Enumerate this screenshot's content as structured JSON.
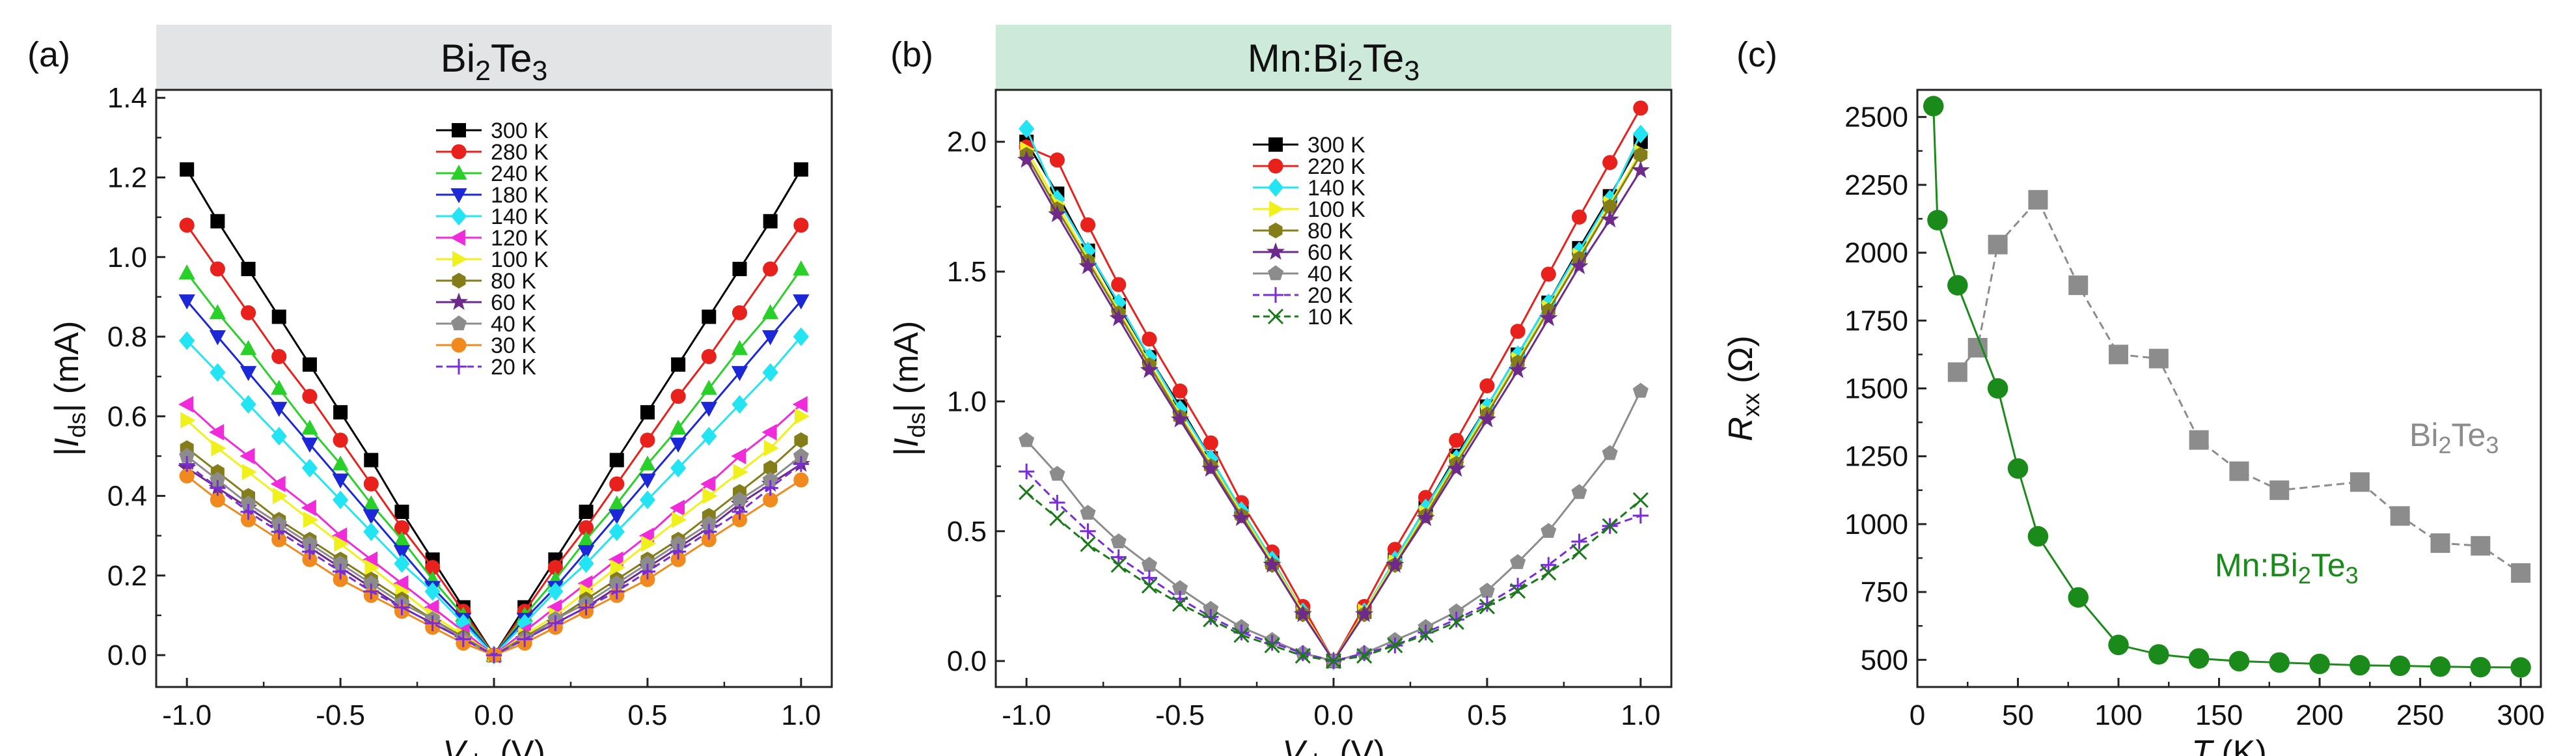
{
  "chart_data": [
    {
      "panel_label": "(a)",
      "type": "line",
      "title": "Bi₂Te₃",
      "title_parts": [
        {
          "t": "Bi"
        },
        {
          "t": "2",
          "sub": true
        },
        {
          "t": "Te"
        },
        {
          "t": "3",
          "sub": true
        }
      ],
      "header_color": "#e3e4e6",
      "xlabel": "V_ds (V)",
      "xlabel_parts": [
        {
          "t": "V",
          "i": true
        },
        {
          "t": "ds",
          "sub": true
        },
        {
          "t": " (V)"
        }
      ],
      "ylabel": "|I_ds| (mA)",
      "ylabel_parts": [
        {
          "t": "|"
        },
        {
          "t": "I",
          "i": true
        },
        {
          "t": "ds",
          "sub": true
        },
        {
          "t": "| (mA)"
        }
      ],
      "xlim": [
        -1.1,
        1.1
      ],
      "ylim": [
        -0.08,
        1.42
      ],
      "xticks": [
        -1.0,
        -0.5,
        0.0,
        0.5,
        1.0
      ],
      "xtick_labels": [
        "-1.0",
        "-0.5",
        "0.0",
        "0.5",
        "1.0"
      ],
      "yticks": [
        0.0,
        0.2,
        0.4,
        0.6,
        0.8,
        1.0,
        1.2,
        1.4
      ],
      "ytick_labels": [
        "0.0",
        "0.2",
        "0.4",
        "0.6",
        "0.8",
        "1.0",
        "1.2",
        "1.4"
      ],
      "x": [
        -1.0,
        -0.9,
        -0.8,
        -0.7,
        -0.6,
        -0.5,
        -0.4,
        -0.3,
        -0.2,
        -0.1,
        0.0,
        0.1,
        0.2,
        0.3,
        0.4,
        0.5,
        0.6,
        0.7,
        0.8,
        0.9,
        1.0
      ],
      "legend_position": "top-center",
      "series": [
        {
          "name": "300 K",
          "color": "#000000",
          "marker": "square",
          "values": [
            1.22,
            1.09,
            0.97,
            0.85,
            0.73,
            0.61,
            0.49,
            0.36,
            0.24,
            0.12,
            0.0,
            0.12,
            0.24,
            0.36,
            0.49,
            0.61,
            0.73,
            0.85,
            0.97,
            1.09,
            1.22
          ]
        },
        {
          "name": "280 K",
          "color": "#e8211c",
          "marker": "circle",
          "values": [
            1.08,
            0.97,
            0.86,
            0.75,
            0.65,
            0.54,
            0.43,
            0.32,
            0.22,
            0.11,
            0.0,
            0.11,
            0.22,
            0.32,
            0.43,
            0.54,
            0.65,
            0.75,
            0.86,
            0.97,
            1.08
          ]
        },
        {
          "name": "240 K",
          "color": "#2ad02a",
          "marker": "triangle-up",
          "values": [
            0.96,
            0.86,
            0.77,
            0.67,
            0.57,
            0.48,
            0.38,
            0.29,
            0.19,
            0.1,
            0.0,
            0.1,
            0.19,
            0.29,
            0.38,
            0.48,
            0.57,
            0.67,
            0.77,
            0.86,
            0.97
          ]
        },
        {
          "name": "180 K",
          "color": "#1c28d8",
          "marker": "triangle-down",
          "values": [
            0.89,
            0.8,
            0.71,
            0.62,
            0.53,
            0.44,
            0.35,
            0.26,
            0.17,
            0.09,
            0.0,
            0.09,
            0.17,
            0.26,
            0.35,
            0.44,
            0.53,
            0.62,
            0.71,
            0.8,
            0.89
          ]
        },
        {
          "name": "140 K",
          "color": "#22e4f2",
          "marker": "diamond",
          "values": [
            0.79,
            0.71,
            0.63,
            0.55,
            0.47,
            0.39,
            0.31,
            0.23,
            0.16,
            0.08,
            0.0,
            0.08,
            0.16,
            0.23,
            0.31,
            0.39,
            0.47,
            0.55,
            0.63,
            0.71,
            0.8
          ]
        },
        {
          "name": "120 K",
          "color": "#f02cda",
          "marker": "triangle-left",
          "values": [
            0.63,
            0.56,
            0.5,
            0.43,
            0.37,
            0.3,
            0.24,
            0.18,
            0.12,
            0.06,
            0.0,
            0.06,
            0.12,
            0.18,
            0.24,
            0.3,
            0.37,
            0.43,
            0.5,
            0.56,
            0.63
          ]
        },
        {
          "name": "100 K",
          "color": "#f0f01c",
          "marker": "triangle-right",
          "values": [
            0.59,
            0.52,
            0.46,
            0.4,
            0.34,
            0.28,
            0.22,
            0.16,
            0.1,
            0.05,
            0.0,
            0.05,
            0.1,
            0.16,
            0.22,
            0.28,
            0.34,
            0.4,
            0.46,
            0.52,
            0.6
          ]
        },
        {
          "name": "80 K",
          "color": "#847e1a",
          "marker": "hexagon",
          "values": [
            0.52,
            0.46,
            0.4,
            0.34,
            0.29,
            0.24,
            0.19,
            0.14,
            0.09,
            0.045,
            0.0,
            0.045,
            0.09,
            0.14,
            0.19,
            0.24,
            0.29,
            0.35,
            0.41,
            0.47,
            0.54
          ]
        },
        {
          "name": "60 K",
          "color": "#6e2a8a",
          "marker": "star",
          "values": [
            0.47,
            0.42,
            0.37,
            0.32,
            0.27,
            0.22,
            0.17,
            0.12,
            0.08,
            0.04,
            0.0,
            0.04,
            0.08,
            0.12,
            0.17,
            0.22,
            0.27,
            0.32,
            0.38,
            0.43,
            0.48
          ]
        },
        {
          "name": "40 K",
          "color": "#8c8c8c",
          "marker": "pentagon",
          "values": [
            0.5,
            0.44,
            0.38,
            0.33,
            0.28,
            0.23,
            0.18,
            0.13,
            0.09,
            0.04,
            0.0,
            0.04,
            0.09,
            0.13,
            0.18,
            0.23,
            0.28,
            0.33,
            0.39,
            0.44,
            0.5
          ]
        },
        {
          "name": "30 K",
          "color": "#f08a1e",
          "marker": "circle",
          "values": [
            0.45,
            0.39,
            0.34,
            0.29,
            0.24,
            0.19,
            0.15,
            0.11,
            0.07,
            0.03,
            0.0,
            0.03,
            0.07,
            0.11,
            0.15,
            0.19,
            0.24,
            0.29,
            0.34,
            0.39,
            0.44
          ]
        },
        {
          "name": "20 K",
          "color": "#7a2cd8",
          "marker": "plus",
          "dashed": true,
          "values": [
            0.48,
            0.42,
            0.36,
            0.31,
            0.26,
            0.21,
            0.16,
            0.12,
            0.08,
            0.04,
            0.0,
            0.04,
            0.08,
            0.12,
            0.16,
            0.21,
            0.26,
            0.31,
            0.36,
            0.42,
            0.48
          ]
        }
      ]
    },
    {
      "panel_label": "(b)",
      "type": "line",
      "title": "Mn:Bi₂Te₃",
      "title_parts": [
        {
          "t": "Mn:Bi"
        },
        {
          "t": "2",
          "sub": true
        },
        {
          "t": "Te"
        },
        {
          "t": "3",
          "sub": true
        }
      ],
      "header_color": "#cde9d9",
      "xlabel": "V_ds (V)",
      "xlabel_parts": [
        {
          "t": "V",
          "i": true
        },
        {
          "t": "ds",
          "sub": true
        },
        {
          "t": " (V)"
        }
      ],
      "ylabel": "|I_ds| (mA)",
      "ylabel_parts": [
        {
          "t": "|"
        },
        {
          "t": "I",
          "i": true
        },
        {
          "t": "ds",
          "sub": true
        },
        {
          "t": "| (mA)"
        }
      ],
      "xlim": [
        -1.1,
        1.1
      ],
      "ylim": [
        -0.1,
        2.2
      ],
      "xticks": [
        -1.0,
        -0.5,
        0.0,
        0.5,
        1.0
      ],
      "xtick_labels": [
        "-1.0",
        "-0.5",
        "0.0",
        "0.5",
        "1.0"
      ],
      "yticks": [
        0.0,
        0.5,
        1.0,
        1.5,
        2.0
      ],
      "ytick_labels": [
        "0.0",
        "0.5",
        "1.0",
        "1.5",
        "2.0"
      ],
      "x": [
        -1.0,
        -0.9,
        -0.8,
        -0.7,
        -0.6,
        -0.5,
        -0.4,
        -0.3,
        -0.2,
        -0.1,
        0.0,
        0.1,
        0.2,
        0.3,
        0.4,
        0.5,
        0.6,
        0.7,
        0.8,
        0.9,
        1.0
      ],
      "legend_position": "top-center",
      "series": [
        {
          "name": "300 K",
          "color": "#000000",
          "marker": "square",
          "values": [
            2.0,
            1.8,
            1.58,
            1.37,
            1.17,
            0.98,
            0.78,
            0.58,
            0.39,
            0.19,
            0.0,
            0.19,
            0.39,
            0.59,
            0.79,
            0.98,
            1.18,
            1.38,
            1.59,
            1.79,
            2.0
          ]
        },
        {
          "name": "220 K",
          "color": "#e8211c",
          "marker": "circle",
          "values": [
            1.98,
            1.93,
            1.68,
            1.45,
            1.24,
            1.04,
            0.84,
            0.61,
            0.42,
            0.21,
            0.0,
            0.21,
            0.43,
            0.63,
            0.85,
            1.06,
            1.27,
            1.49,
            1.71,
            1.92,
            2.13
          ]
        },
        {
          "name": "140 K",
          "color": "#22e4f2",
          "marker": "diamond",
          "values": [
            2.05,
            1.78,
            1.58,
            1.38,
            1.17,
            0.97,
            0.78,
            0.58,
            0.39,
            0.19,
            0.0,
            0.19,
            0.39,
            0.59,
            0.78,
            0.98,
            1.18,
            1.38,
            1.58,
            1.78,
            2.03
          ]
        },
        {
          "name": "100 K",
          "color": "#f0f01c",
          "marker": "triangle-right",
          "values": [
            1.97,
            1.76,
            1.55,
            1.35,
            1.15,
            0.95,
            0.76,
            0.57,
            0.38,
            0.19,
            0.0,
            0.19,
            0.38,
            0.57,
            0.77,
            0.96,
            1.16,
            1.36,
            1.56,
            1.76,
            1.96
          ]
        },
        {
          "name": "80 K",
          "color": "#847e1a",
          "marker": "hexagon",
          "values": [
            1.95,
            1.74,
            1.54,
            1.34,
            1.14,
            0.94,
            0.75,
            0.56,
            0.37,
            0.18,
            0.0,
            0.18,
            0.37,
            0.56,
            0.76,
            0.95,
            1.15,
            1.35,
            1.55,
            1.75,
            1.95
          ]
        },
        {
          "name": "60 K",
          "color": "#6e2a8a",
          "marker": "star",
          "values": [
            1.93,
            1.72,
            1.52,
            1.32,
            1.12,
            0.93,
            0.74,
            0.55,
            0.37,
            0.18,
            0.0,
            0.18,
            0.37,
            0.55,
            0.74,
            0.93,
            1.12,
            1.32,
            1.52,
            1.7,
            1.89
          ]
        },
        {
          "name": "40 K",
          "color": "#8c8c8c",
          "marker": "pentagon",
          "values": [
            0.85,
            0.72,
            0.57,
            0.46,
            0.37,
            0.28,
            0.2,
            0.13,
            0.08,
            0.03,
            0.0,
            0.03,
            0.08,
            0.13,
            0.19,
            0.27,
            0.38,
            0.5,
            0.65,
            0.8,
            1.04
          ]
        },
        {
          "name": "20 K",
          "color": "#7a2cd8",
          "marker": "plus",
          "dashed": true,
          "values": [
            0.73,
            0.61,
            0.5,
            0.4,
            0.32,
            0.24,
            0.17,
            0.11,
            0.07,
            0.03,
            0.0,
            0.03,
            0.06,
            0.11,
            0.16,
            0.22,
            0.29,
            0.37,
            0.46,
            0.52,
            0.56
          ]
        },
        {
          "name": "10 K",
          "color": "#1a7a1a",
          "marker": "cross",
          "dashed": true,
          "values": [
            0.65,
            0.55,
            0.45,
            0.37,
            0.29,
            0.22,
            0.16,
            0.1,
            0.06,
            0.02,
            0.0,
            0.02,
            0.06,
            0.1,
            0.15,
            0.21,
            0.27,
            0.34,
            0.42,
            0.52,
            0.62
          ]
        }
      ]
    },
    {
      "panel_label": "(c)",
      "type": "line",
      "title": "",
      "xlabel": "T (K)",
      "xlabel_parts": [
        {
          "t": "T",
          "i": true
        },
        {
          "t": " (K)"
        }
      ],
      "ylabel": "R_xx (Ω)",
      "ylabel_parts": [
        {
          "t": "R",
          "i": true
        },
        {
          "t": "xx",
          "sub": true
        },
        {
          "t": " (Ω)"
        }
      ],
      "xlim": [
        0,
        310
      ],
      "ylim": [
        400,
        2600
      ],
      "xticks": [
        0,
        50,
        100,
        150,
        200,
        250,
        300
      ],
      "xtick_labels": [
        "0",
        "50",
        "100",
        "150",
        "200",
        "250",
        "300"
      ],
      "yticks": [
        500,
        750,
        1000,
        1250,
        1500,
        1750,
        2000,
        2250,
        2500
      ],
      "ytick_labels": [
        "500",
        "750",
        "1000",
        "1250",
        "1500",
        "1750",
        "2000",
        "2250",
        "2500"
      ],
      "series": [
        {
          "name": "Bi₂Te₃",
          "color": "#8c8c8c",
          "marker": "square",
          "dashed": true,
          "label_parts": [
            {
              "t": "Bi"
            },
            {
              "t": "2",
              "sub": true
            },
            {
              "t": "Te"
            },
            {
              "t": "3",
              "sub": true
            }
          ],
          "x": [
            20,
            30,
            40,
            60,
            80,
            100,
            120,
            140,
            160,
            180,
            220,
            240,
            260,
            280,
            300
          ],
          "values": [
            1560,
            1650,
            2030,
            2195,
            1880,
            1625,
            1610,
            1310,
            1195,
            1125,
            1155,
            1030,
            930,
            920,
            820
          ]
        },
        {
          "name": "Mn:Bi₂Te₃",
          "color": "#1a8a1a",
          "marker": "circle",
          "dashed": false,
          "label_parts": [
            {
              "t": "Mn:Bi"
            },
            {
              "t": "2",
              "sub": true
            },
            {
              "t": "Te"
            },
            {
              "t": "3",
              "sub": true
            }
          ],
          "x": [
            8,
            10,
            20,
            40,
            50,
            60,
            80,
            100,
            120,
            140,
            160,
            180,
            200,
            220,
            240,
            260,
            280,
            300
          ],
          "values": [
            2540,
            2120,
            1880,
            1500,
            1205,
            955,
            730,
            555,
            520,
            505,
            495,
            490,
            485,
            480,
            478,
            475,
            473,
            472
          ]
        }
      ]
    }
  ]
}
